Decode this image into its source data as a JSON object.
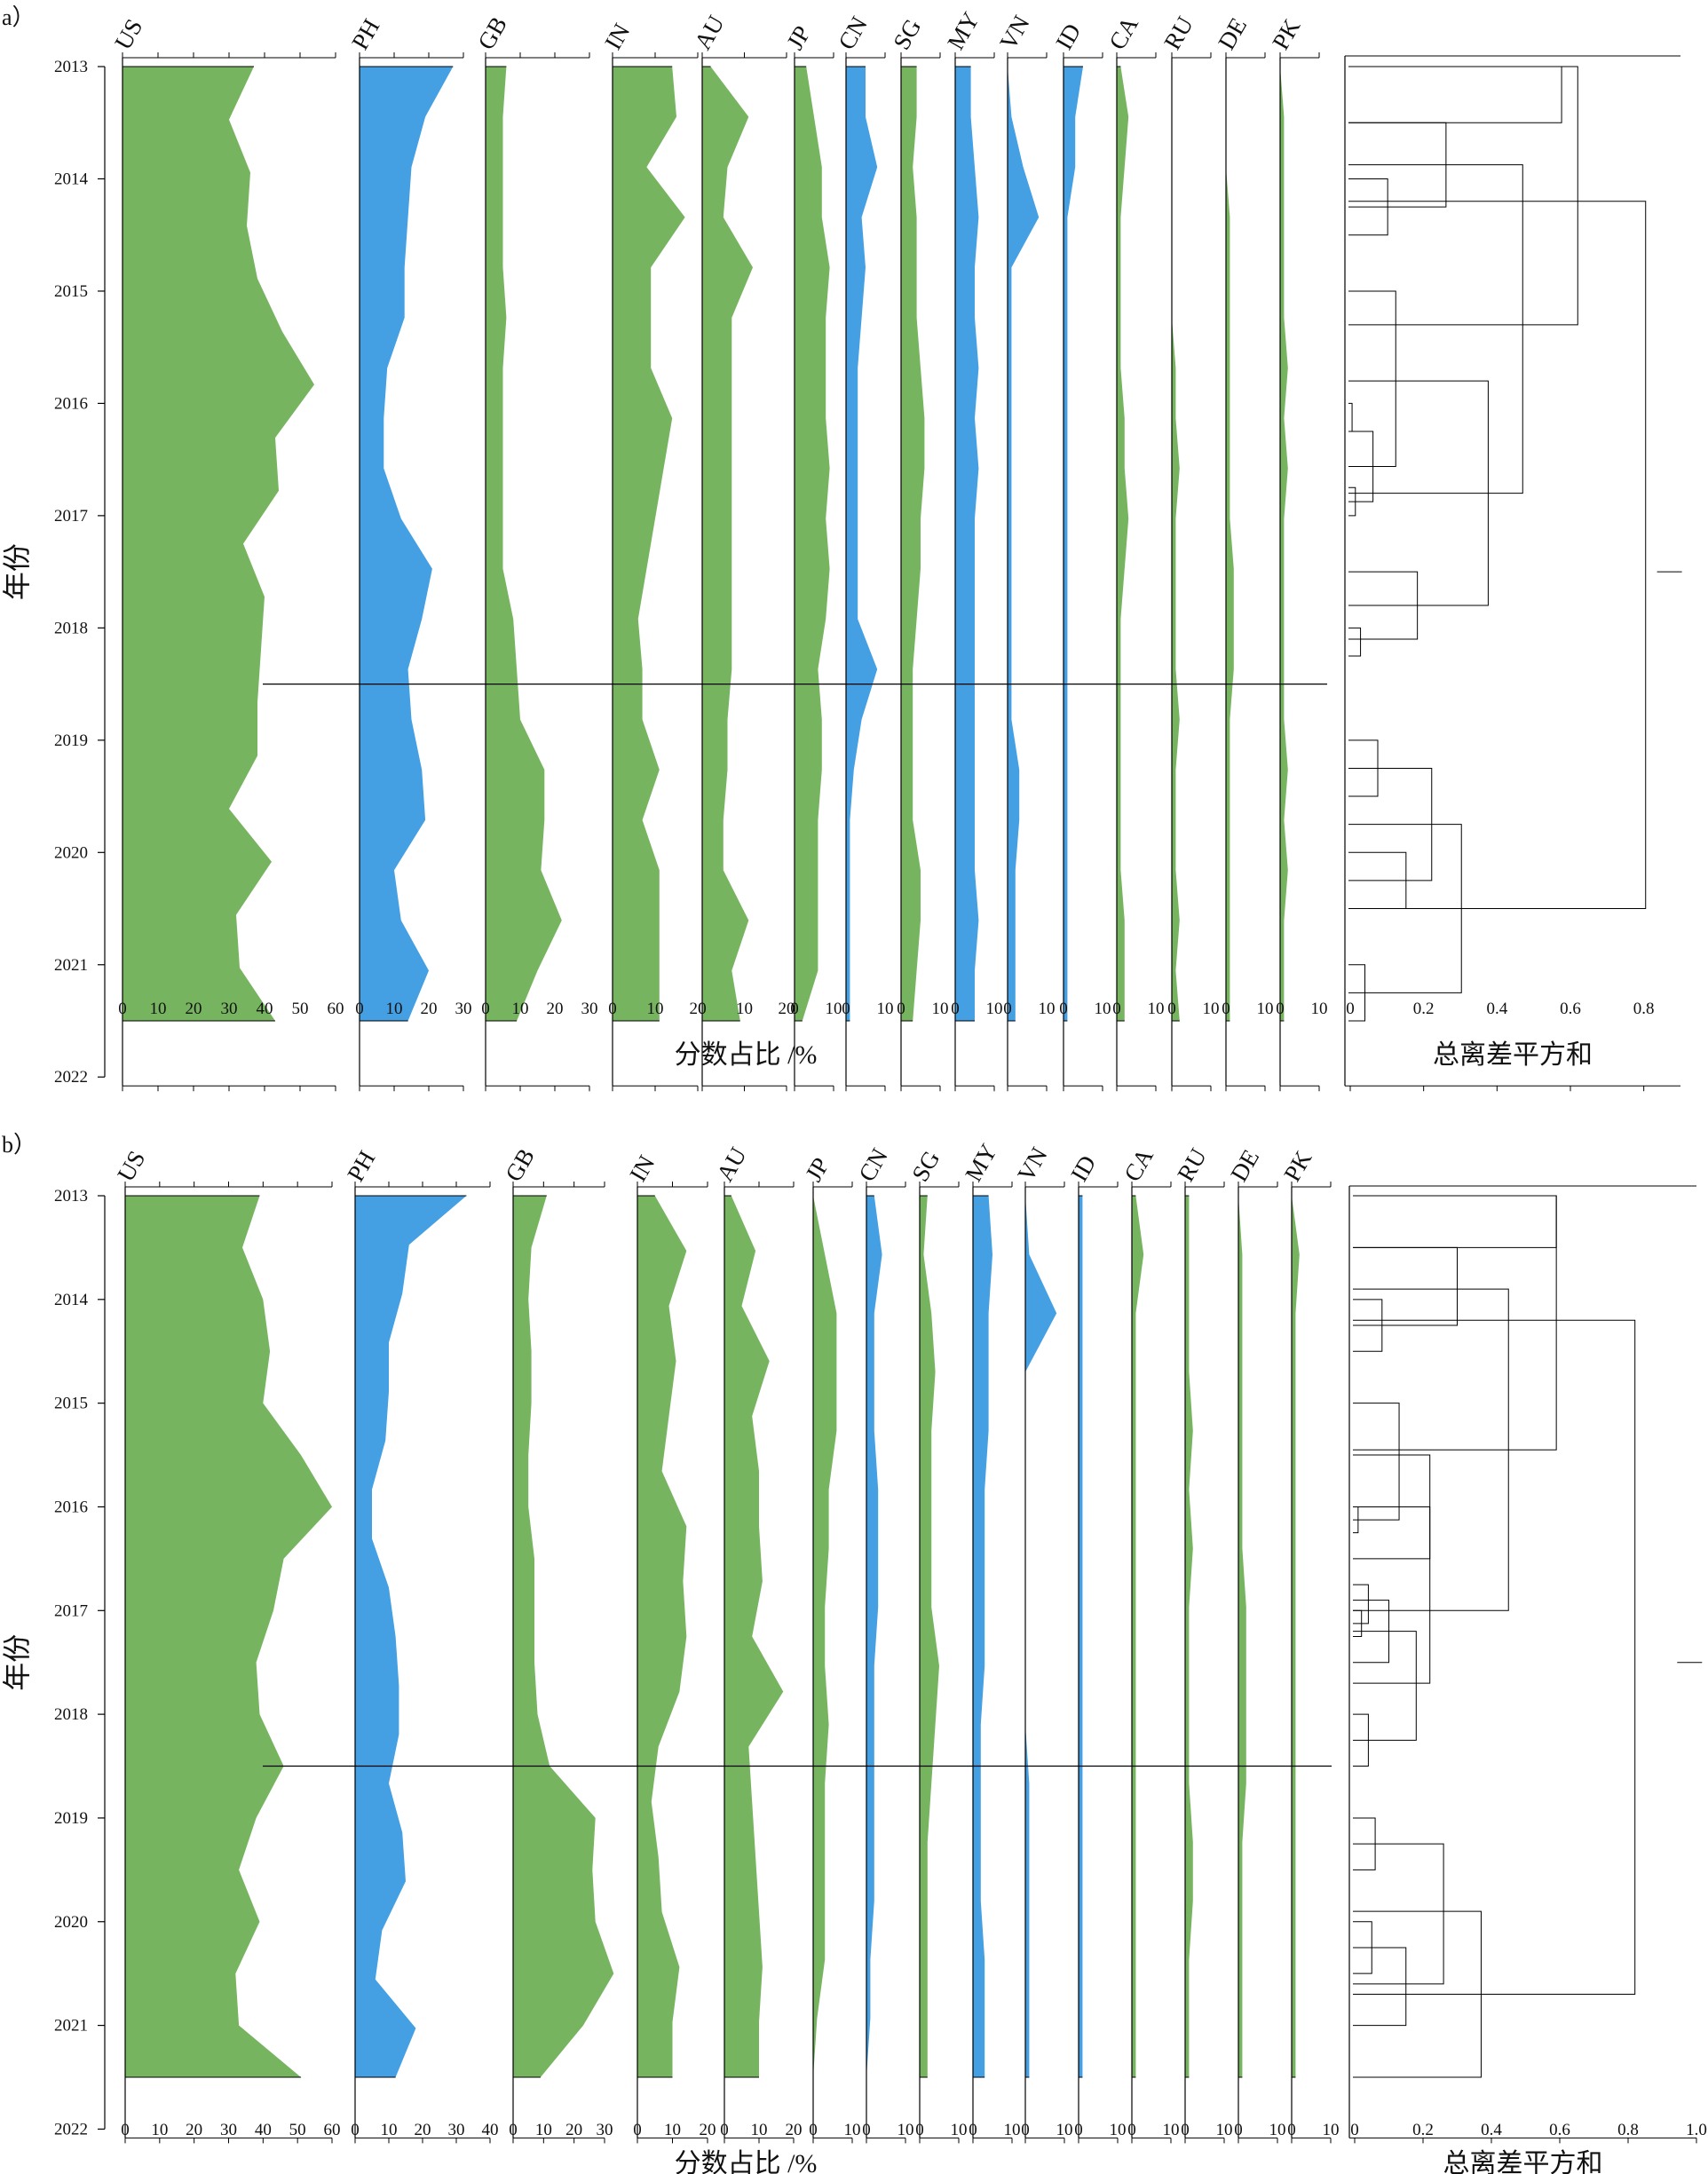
{
  "chart_data": [
    {
      "panel_label": "a）",
      "type": "area",
      "y_axis": {
        "title": "年份",
        "ticks": [
          2013,
          2014,
          2015,
          2016,
          2017,
          2018,
          2019,
          2020,
          2021,
          2022
        ],
        "range": [
          2013,
          2022
        ],
        "reversed": true
      },
      "x_title": "分数占比 /%",
      "dendrogram_title": "总离差平方和",
      "dendrogram_ticks": [
        "0",
        "0.2",
        "0.4",
        "0.6",
        "0.8"
      ],
      "dendrogram_range": [
        0,
        0.9
      ],
      "dendrogram_joins": [
        {
          "a": 2013.0,
          "b": 2013.5,
          "h": 0.576
        },
        {
          "a": 2014.0,
          "b": 2014.5,
          "h": 0.102
        },
        {
          "a": 2014.25,
          "b": 2013.5,
          "h": 0.261
        },
        {
          "a": 2016.0,
          "b": 2016.25,
          "h": 0.005
        },
        {
          "a": 2016.75,
          "b": 2017.0,
          "h": 0.014
        },
        {
          "a": 2016.875,
          "b": 2016.25,
          "h": 0.062
        },
        {
          "a": 2016.5625,
          "b": 2015.0,
          "h": 0.124
        },
        {
          "a": 2018.0,
          "b": 2018.25,
          "h": 0.028
        },
        {
          "a": 2017.5,
          "b": 2018.1,
          "h": 0.183
        },
        {
          "a": 2015.8,
          "b": 2017.8,
          "h": 0.376
        },
        {
          "a": 2013.875,
          "b": 2016.8,
          "h": 0.47
        },
        {
          "a": 2013.0,
          "b": 2015.3,
          "h": 0.62
        },
        {
          "a": 2019.0,
          "b": 2019.5,
          "h": 0.075
        },
        {
          "a": 2020.0,
          "b": 2020.5,
          "h": 0.152
        },
        {
          "a": 2019.25,
          "b": 2020.25,
          "h": 0.222
        },
        {
          "a": 2021.0,
          "b": 2021.5,
          "h": 0.04
        },
        {
          "a": 2019.75,
          "b": 2021.25,
          "h": 0.303
        },
        {
          "a": 2014.2,
          "b": 2020.5,
          "h": 0.805
        }
      ],
      "dendrogram_root": 0.87,
      "break_year": 2018.5,
      "series": [
        {
          "name": "US",
          "color": "#77b460",
          "ticks": [
            "0",
            "10",
            "20",
            "30",
            "40",
            "50",
            "60"
          ],
          "max": 60,
          "values": [
            37,
            30,
            36,
            35,
            38,
            45,
            54,
            43,
            44,
            34,
            40,
            39,
            38,
            38,
            30,
            42,
            32,
            33,
            43
          ]
        },
        {
          "name": "PH",
          "color": "#449fe3",
          "ticks": [
            "0",
            "10",
            "20",
            "30"
          ],
          "max": 30,
          "values": [
            27,
            19,
            15,
            14,
            13,
            13,
            8,
            7,
            7,
            12,
            21,
            18,
            14,
            15,
            18,
            19,
            10,
            12,
            20,
            14
          ]
        },
        {
          "name": "GB",
          "color": "#77b460",
          "ticks": [
            "0",
            "10",
            "20",
            "30"
          ],
          "max": 30,
          "values": [
            6,
            5,
            5,
            5,
            5,
            6,
            5,
            5,
            5,
            5,
            5,
            8,
            9,
            10,
            17,
            17,
            16,
            22,
            15,
            9
          ]
        },
        {
          "name": "IN",
          "color": "#77b460",
          "ticks": [
            "0",
            "10",
            "20"
          ],
          "max": 20,
          "values": [
            14,
            15,
            8,
            17,
            9,
            9,
            9,
            14,
            12,
            10,
            8,
            6,
            7,
            7,
            11,
            7,
            11,
            11,
            11,
            11
          ]
        },
        {
          "name": "AU",
          "color": "#77b460",
          "ticks": [
            "0",
            "10",
            "20"
          ],
          "max": 20,
          "values": [
            2,
            11,
            6,
            5,
            12,
            7,
            7,
            7,
            7,
            7,
            7,
            7,
            7,
            6,
            6,
            5,
            5,
            11,
            7,
            9
          ]
        },
        {
          "name": "JP",
          "color": "#77b460",
          "ticks": [
            "0",
            "10"
          ],
          "max": 10,
          "values": [
            3,
            5,
            7,
            7,
            9,
            8,
            8,
            8,
            9,
            8,
            9,
            8,
            6,
            7,
            7,
            6,
            6,
            6,
            6,
            2
          ]
        },
        {
          "name": "CN",
          "color": "#449fe3",
          "ticks": [
            "0",
            "10"
          ],
          "max": 10,
          "values": [
            5,
            5,
            8,
            4,
            5,
            4,
            3,
            3,
            3,
            3,
            3,
            3,
            8,
            4,
            2,
            1,
            1,
            1,
            1,
            1
          ]
        },
        {
          "name": "SG",
          "color": "#77b460",
          "ticks": [
            "0",
            "10"
          ],
          "max": 10,
          "values": [
            4,
            4,
            3,
            4,
            4,
            4,
            5,
            6,
            6,
            5,
            5,
            4,
            3,
            3,
            3,
            3,
            5,
            5,
            4,
            3
          ]
        },
        {
          "name": "MY",
          "color": "#449fe3",
          "ticks": [
            "0",
            "10"
          ],
          "max": 10,
          "values": [
            4,
            4,
            5,
            6,
            5,
            5,
            6,
            5,
            6,
            5,
            5,
            5,
            5,
            5,
            5,
            5,
            5,
            6,
            5,
            5
          ]
        },
        {
          "name": "VN",
          "color": "#449fe3",
          "ticks": [
            "0",
            "10"
          ],
          "max": 10,
          "values": [
            0,
            1,
            4,
            8,
            1,
            1,
            1,
            1,
            1,
            1,
            1,
            1,
            1,
            1,
            3,
            3,
            2,
            2,
            2,
            2
          ]
        },
        {
          "name": "ID",
          "color": "#449fe3",
          "ticks": [
            "0",
            "10"
          ],
          "max": 10,
          "values": [
            5,
            3,
            3,
            1,
            1,
            1,
            1,
            1,
            1,
            1,
            1,
            1,
            1,
            1,
            1,
            1,
            1,
            1,
            1,
            1
          ]
        },
        {
          "name": "CA",
          "color": "#77b460",
          "ticks": [
            "0",
            "10"
          ],
          "max": 10,
          "values": [
            1,
            3,
            2,
            1,
            1,
            1,
            1,
            2,
            2,
            3,
            2,
            1,
            1,
            1,
            1,
            1,
            1,
            2,
            2,
            2
          ]
        },
        {
          "name": "RU",
          "color": "#77b460",
          "ticks": [
            "0",
            "10"
          ],
          "max": 10,
          "values": [
            0,
            0,
            0,
            0,
            0,
            0,
            1,
            1,
            2,
            1,
            1,
            1,
            1,
            2,
            1,
            1,
            1,
            2,
            1,
            2
          ]
        },
        {
          "name": "DE",
          "color": "#77b460",
          "ticks": [
            "0",
            "10"
          ],
          "max": 10,
          "values": [
            0,
            0,
            0,
            1,
            1,
            1,
            1,
            1,
            1,
            1,
            2,
            2,
            2,
            1,
            1,
            1,
            1,
            1,
            1,
            1
          ]
        },
        {
          "name": "PK",
          "color": "#77b460",
          "ticks": [
            "0",
            "10"
          ],
          "max": 10,
          "values": [
            0,
            1,
            1,
            1,
            1,
            1,
            2,
            1,
            2,
            1,
            1,
            1,
            1,
            1,
            2,
            1,
            2,
            1,
            1,
            1
          ]
        }
      ]
    },
    {
      "panel_label": "b）",
      "type": "area",
      "y_axis": {
        "title": "年份",
        "ticks": [
          2013,
          2014,
          2015,
          2016,
          2017,
          2018,
          2019,
          2020,
          2021,
          2022
        ],
        "range": [
          2013,
          2022
        ],
        "reversed": true
      },
      "x_title": "分数占比 /%",
      "dendrogram_title": "总离差平方和",
      "dendrogram_ticks": [
        "0",
        "0.2",
        "0.4",
        "0.6",
        "0.8",
        "1.0"
      ],
      "dendrogram_range": [
        0,
        1.0
      ],
      "dendrogram_joins": [
        {
          "a": 2013.0,
          "b": 2013.5,
          "h": 0.59
        },
        {
          "a": 2014.0,
          "b": 2014.5,
          "h": 0.08
        },
        {
          "a": 2014.25,
          "b": 2013.5,
          "h": 0.3
        },
        {
          "a": 2016.0,
          "b": 2016.25,
          "h": 0.01
        },
        {
          "a": 2016.125,
          "b": 2015.0,
          "h": 0.13
        },
        {
          "a": 2015.5,
          "b": 2016.5,
          "h": 0.22
        },
        {
          "a": 2017.0,
          "b": 2017.25,
          "h": 0.02
        },
        {
          "a": 2016.75,
          "b": 2017.125,
          "h": 0.04
        },
        {
          "a": 2016.9,
          "b": 2017.5,
          "h": 0.1
        },
        {
          "a": 2018.0,
          "b": 2018.5,
          "h": 0.04
        },
        {
          "a": 2017.2,
          "b": 2018.25,
          "h": 0.18
        },
        {
          "a": 2016.0,
          "b": 2017.7,
          "h": 0.22
        },
        {
          "a": 2013.9,
          "b": 2017.0,
          "h": 0.45
        },
        {
          "a": 2013.0,
          "b": 2015.45,
          "h": 0.59
        },
        {
          "a": 2019.0,
          "b": 2019.5,
          "h": 0.06
        },
        {
          "a": 2020.0,
          "b": 2020.5,
          "h": 0.05
        },
        {
          "a": 2020.25,
          "b": 2021.0,
          "h": 0.15
        },
        {
          "a": 2019.25,
          "b": 2020.6,
          "h": 0.26
        },
        {
          "a": 2019.9,
          "b": 2021.5,
          "h": 0.37
        },
        {
          "a": 2014.2,
          "b": 2020.7,
          "h": 0.82
        }
      ],
      "dendrogram_root": 0.98,
      "break_year": 2018.5,
      "series": [
        {
          "name": "US",
          "color": "#77b460",
          "ticks": [
            "0",
            "10",
            "20",
            "30",
            "40",
            "50",
            "60"
          ],
          "max": 60,
          "values": [
            39,
            34,
            40,
            42,
            40,
            51,
            60,
            46,
            43,
            38,
            39,
            46,
            38,
            33,
            39,
            32,
            33,
            51
          ]
        },
        {
          "name": "PH",
          "color": "#449fe3",
          "ticks": [
            "0",
            "10",
            "20",
            "30",
            "40"
          ],
          "max": 40,
          "values": [
            33,
            16,
            14,
            10,
            10,
            9,
            5,
            5,
            10,
            12,
            13,
            13,
            10,
            14,
            15,
            8,
            6,
            18,
            12
          ]
        },
        {
          "name": "GB",
          "color": "#77b460",
          "ticks": [
            "0",
            "10",
            "20",
            "30"
          ],
          "max": 30,
          "values": [
            11,
            6,
            5,
            6,
            6,
            5,
            5,
            7,
            7,
            7,
            8,
            12,
            27,
            26,
            27,
            33,
            23,
            9
          ]
        },
        {
          "name": "IN",
          "color": "#77b460",
          "ticks": [
            "0",
            "10",
            "20"
          ],
          "max": 20,
          "values": [
            5,
            14,
            9,
            11,
            9,
            7,
            14,
            13,
            14,
            12,
            6,
            4,
            6,
            7,
            12,
            10,
            10
          ]
        },
        {
          "name": "AU",
          "color": "#77b460",
          "ticks": [
            "0",
            "10",
            "20"
          ],
          "max": 20,
          "values": [
            2,
            9,
            5,
            13,
            8,
            10,
            10,
            11,
            8,
            17,
            7,
            8,
            9,
            10,
            11,
            10,
            10
          ]
        },
        {
          "name": "JP",
          "color": "#77b460",
          "ticks": [
            "0",
            "10"
          ],
          "max": 10,
          "values": [
            0,
            3,
            6,
            6,
            6,
            4,
            4,
            3,
            3,
            4,
            3,
            3,
            3,
            3,
            1,
            0
          ]
        },
        {
          "name": "CN",
          "color": "#449fe3",
          "ticks": [
            "0",
            "10"
          ],
          "max": 10,
          "values": [
            2,
            4,
            2,
            2,
            2,
            3,
            3,
            3,
            2,
            2,
            2,
            2,
            2,
            1,
            1,
            0
          ]
        },
        {
          "name": "SG",
          "color": "#77b460",
          "ticks": [
            "0",
            "10"
          ],
          "max": 10,
          "values": [
            2,
            1,
            3,
            4,
            3,
            3,
            3,
            3,
            5,
            4,
            3,
            2,
            2,
            2,
            2,
            2
          ]
        },
        {
          "name": "MY",
          "color": "#449fe3",
          "ticks": [
            "0",
            "10"
          ],
          "max": 10,
          "values": [
            4,
            5,
            4,
            4,
            4,
            3,
            3,
            3,
            3,
            2,
            2,
            2,
            2,
            3,
            3,
            3
          ]
        },
        {
          "name": "VN",
          "color": "#449fe3",
          "ticks": [
            "0",
            "10"
          ],
          "max": 10,
          "values": [
            0,
            1,
            8,
            0,
            0,
            0,
            0,
            0,
            0,
            0,
            1,
            1,
            1,
            1,
            1,
            1
          ]
        },
        {
          "name": "ID",
          "color": "#449fe3",
          "ticks": [
            "0",
            "10"
          ],
          "max": 10,
          "values": [
            1,
            1,
            1,
            1,
            1,
            1,
            1,
            1,
            1,
            1,
            1,
            1,
            1,
            1,
            1,
            1
          ]
        },
        {
          "name": "CA",
          "color": "#77b460",
          "ticks": [
            "0",
            "10"
          ],
          "max": 10,
          "values": [
            1,
            3,
            1,
            1,
            1,
            1,
            1,
            1,
            1,
            1,
            1,
            1,
            1,
            1,
            1,
            1
          ]
        },
        {
          "name": "RU",
          "color": "#77b460",
          "ticks": [
            "0",
            "10"
          ],
          "max": 10,
          "values": [
            1,
            1,
            1,
            1,
            2,
            1,
            2,
            1,
            1,
            1,
            1,
            2,
            2,
            1,
            1,
            1
          ]
        },
        {
          "name": "DE",
          "color": "#77b460",
          "ticks": [
            "0",
            "10"
          ],
          "max": 10,
          "values": [
            0,
            1,
            1,
            1,
            1,
            1,
            1,
            2,
            2,
            2,
            2,
            1,
            1,
            1,
            1,
            1
          ]
        },
        {
          "name": "PK",
          "color": "#77b460",
          "ticks": [
            "0",
            "10"
          ],
          "max": 10,
          "values": [
            0,
            2,
            1,
            1,
            1,
            1,
            1,
            1,
            1,
            1,
            1,
            1,
            1,
            1,
            1,
            1
          ]
        }
      ]
    }
  ]
}
